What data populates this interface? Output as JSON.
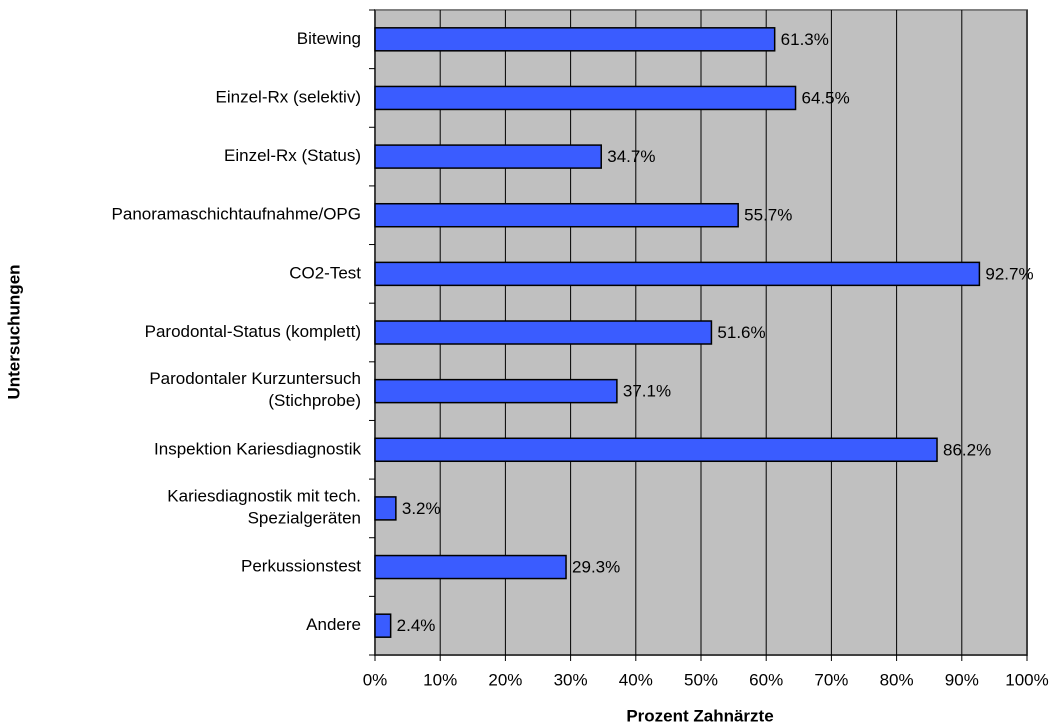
{
  "chart_data": {
    "type": "bar",
    "orientation": "horizontal",
    "x_label": "Prozent Zahnärzte",
    "y_label": "Untersuchungen",
    "categories": [
      "Bitewing",
      "Einzel-Rx (selektiv)",
      "Einzel-Rx (Status)",
      "Panoramaschichtaufnahme/OPG",
      "CO2-Test",
      "Parodontal-Status (komplett)",
      "Parodontaler Kurzuntersuch\n(Stichprobe)",
      "Inspektion Kariesdiagnostik",
      "Kariesdiagnostik mit tech.\nSpezialgeräten",
      "Perkussionstest",
      "Andere"
    ],
    "values": [
      61.3,
      64.5,
      34.7,
      55.7,
      92.7,
      51.6,
      37.1,
      86.2,
      3.2,
      29.3,
      2.4
    ],
    "value_labels": [
      "61.3%",
      "64.5%",
      "34.7%",
      "55.7%",
      "92.7%",
      "51.6%",
      "37.1%",
      "86.2%",
      "3.2%",
      "29.3%",
      "2.4%"
    ],
    "color": "#3a5cff",
    "xlim": [
      0,
      100
    ],
    "xticks": [
      {
        "value": 0,
        "label": "0%"
      },
      {
        "value": 10,
        "label": "10%"
      },
      {
        "value": 20,
        "label": "20%"
      },
      {
        "value": 30,
        "label": "30%"
      },
      {
        "value": 40,
        "label": "40%"
      },
      {
        "value": 50,
        "label": "50%"
      },
      {
        "value": 60,
        "label": "60%"
      },
      {
        "value": 70,
        "label": "70%"
      },
      {
        "value": 80,
        "label": "80%"
      },
      {
        "value": 90,
        "label": "90%"
      },
      {
        "value": 100,
        "label": "100%"
      }
    ],
    "grid": true
  }
}
